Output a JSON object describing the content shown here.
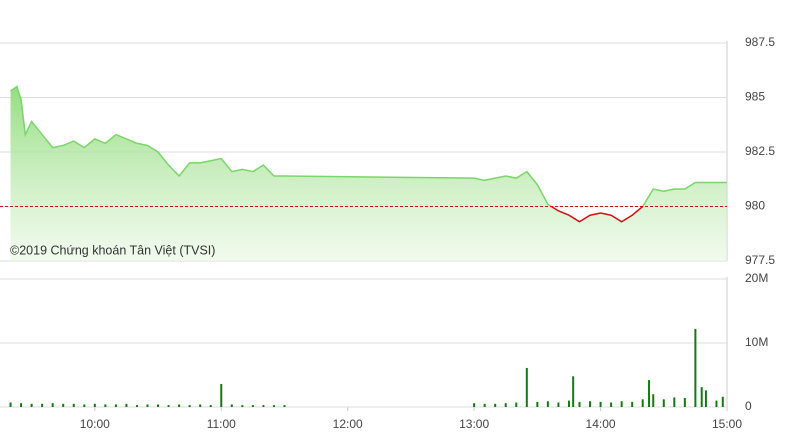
{
  "chart_data": [
    {
      "type": "area",
      "annotation": "©2019 Chứng khoán Tân Việt (TVSI)",
      "reference": 980,
      "color": "#7ad66a",
      "below_color": "#d01010",
      "reference_color": "#d01010",
      "x": [
        560,
        563,
        565,
        567,
        570,
        575,
        580,
        585,
        590,
        595,
        600,
        605,
        610,
        615,
        620,
        625,
        630,
        635,
        640,
        645,
        650,
        655,
        660,
        665,
        670,
        675,
        680,
        685,
        690,
        780,
        785,
        790,
        795,
        800,
        805,
        810,
        815,
        820,
        825,
        830,
        835,
        840,
        845,
        850,
        855,
        860,
        865,
        870,
        875,
        880,
        885,
        890,
        895,
        900
      ],
      "values": [
        985.3,
        985.5,
        984.9,
        983.3,
        983.9,
        983.3,
        982.7,
        982.8,
        983.0,
        982.7,
        983.1,
        982.9,
        983.3,
        983.1,
        982.9,
        982.8,
        982.5,
        981.9,
        981.4,
        982.0,
        982.0,
        982.1,
        982.2,
        981.6,
        981.7,
        981.6,
        981.9,
        981.4,
        981.4,
        981.3,
        981.2,
        981.3,
        981.4,
        981.3,
        981.6,
        981.0,
        980.1,
        979.8,
        979.6,
        979.3,
        979.6,
        979.7,
        979.6,
        979.3,
        979.6,
        980.0,
        980.8,
        980.7,
        980.8,
        980.8,
        981.1,
        981.1,
        981.1,
        981.1
      ],
      "xlim": [
        555,
        900
      ],
      "ylim": [
        977.5,
        987.5
      ],
      "yticks": [
        977.5,
        980,
        982.5,
        985,
        987.5
      ],
      "grid": true
    },
    {
      "type": "bar",
      "color": "#137a13",
      "x": [
        560,
        565,
        570,
        575,
        580,
        585,
        590,
        595,
        600,
        605,
        610,
        615,
        620,
        625,
        630,
        635,
        640,
        645,
        650,
        655,
        660,
        665,
        670,
        675,
        680,
        685,
        690,
        780,
        785,
        790,
        795,
        800,
        805,
        810,
        815,
        820,
        825,
        827,
        830,
        835,
        840,
        845,
        850,
        855,
        860,
        863,
        865,
        870,
        875,
        880,
        885,
        888,
        890,
        895,
        898
      ],
      "values": [
        0.7,
        0.6,
        0.5,
        0.5,
        0.6,
        0.5,
        0.5,
        0.4,
        0.5,
        0.4,
        0.4,
        0.5,
        0.3,
        0.4,
        0.4,
        0.3,
        0.4,
        0.3,
        0.4,
        0.3,
        3.6,
        0.4,
        0.3,
        0.3,
        0.3,
        0.3,
        0.3,
        0.6,
        0.5,
        0.5,
        0.6,
        0.7,
        6.1,
        0.8,
        0.9,
        0.7,
        1.0,
        4.8,
        0.8,
        0.9,
        0.8,
        0.7,
        0.9,
        0.8,
        1.2,
        4.2,
        2.0,
        1.2,
        1.5,
        1.4,
        12.2,
        3.1,
        2.6,
        1.0,
        1.6
      ],
      "xlim": [
        555,
        900
      ],
      "xticks": [
        {
          "value": 600,
          "label": "10:00"
        },
        {
          "value": 660,
          "label": "11:00"
        },
        {
          "value": 720,
          "label": "12:00"
        },
        {
          "value": 780,
          "label": "13:00"
        },
        {
          "value": 840,
          "label": "14:00"
        },
        {
          "value": 900,
          "label": "15:00"
        }
      ],
      "ylim": [
        0,
        20
      ],
      "yticks": [
        0,
        {
          "value": 10,
          "label": "10M"
        },
        {
          "value": 20,
          "label": "20M"
        }
      ],
      "grid": true
    }
  ]
}
